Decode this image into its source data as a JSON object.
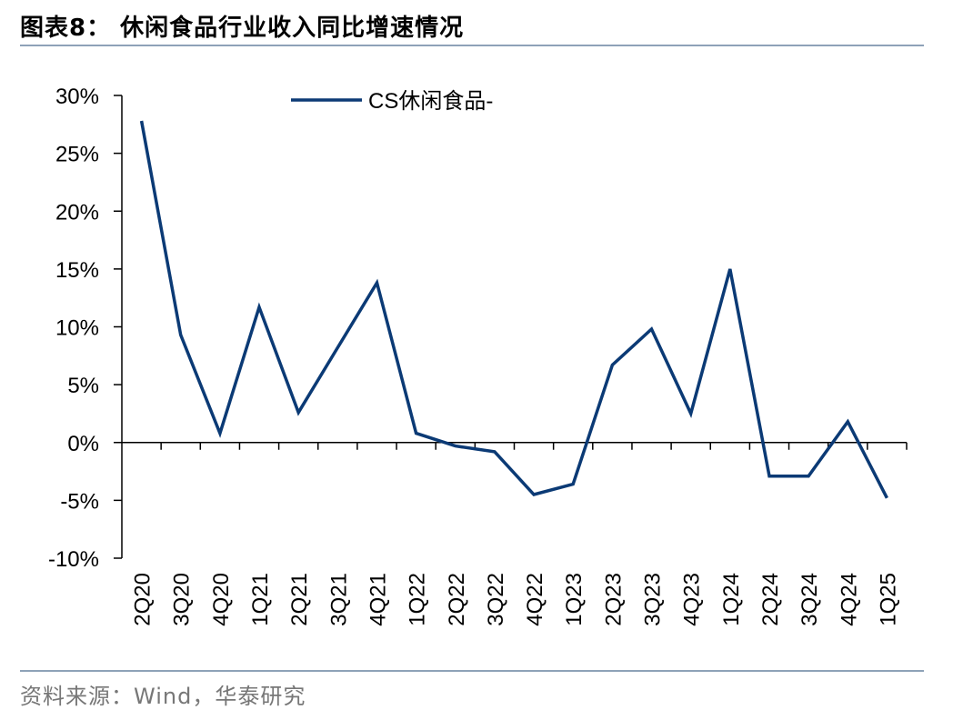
{
  "header": {
    "title": "图表8：  休闲食品行业收入同比增速情况"
  },
  "footer": {
    "source": "资料来源：Wind，华泰研究"
  },
  "colors": {
    "series": "#0b3a75",
    "rule": "#8ea2b8",
    "axis": "#000000"
  },
  "chart_data": {
    "type": "line",
    "title": "",
    "xlabel": "",
    "ylabel": "",
    "categories": [
      "2Q20",
      "3Q20",
      "4Q20",
      "1Q21",
      "2Q21",
      "3Q21",
      "4Q21",
      "1Q22",
      "2Q22",
      "3Q22",
      "4Q22",
      "1Q23",
      "2Q23",
      "3Q23",
      "4Q23",
      "1Q24",
      "2Q24",
      "3Q24",
      "4Q24",
      "1Q25"
    ],
    "series": [
      {
        "name": "CS休闲食品-",
        "values": [
          27.8,
          9.3,
          0.8,
          11.7,
          2.6,
          8.2,
          13.8,
          0.8,
          -0.3,
          -0.8,
          -4.5,
          -3.6,
          6.7,
          9.8,
          2.5,
          15.0,
          -2.9,
          -2.9,
          1.8,
          -4.8
        ]
      }
    ],
    "ylim": [
      -10,
      30
    ],
    "yticks": [
      30,
      25,
      20,
      15,
      10,
      5,
      0,
      -5,
      -10
    ],
    "ytick_labels": [
      "30%",
      "25%",
      "20%",
      "15%",
      "10%",
      "5%",
      "0%",
      "-5%",
      "-10%"
    ],
    "legend_position": "top"
  }
}
